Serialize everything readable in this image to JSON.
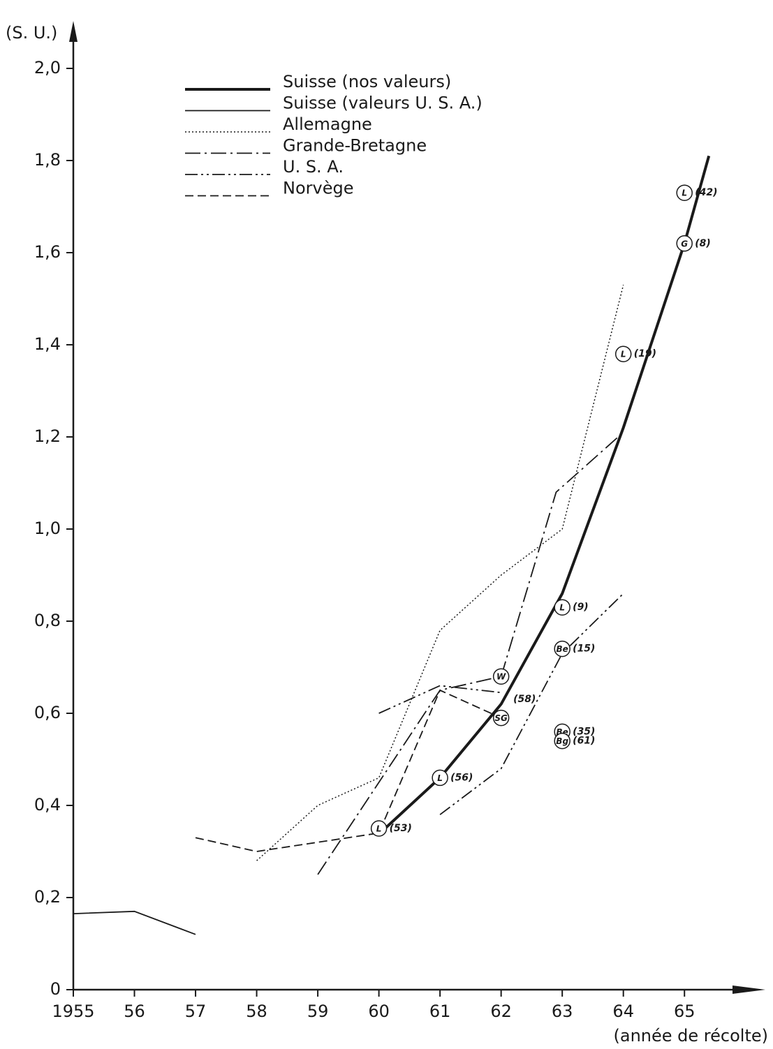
{
  "chart_data": {
    "type": "line",
    "y_label": "(S. U.)",
    "x_label": "(année de récolte)",
    "xlim": [
      1955,
      1966.3
    ],
    "ylim": [
      0,
      2.1
    ],
    "xticks": [
      1955,
      {
        "value": 1956,
        "label": "56"
      },
      {
        "value": 1957,
        "label": "57"
      },
      {
        "value": 1958,
        "label": "58"
      },
      {
        "value": 1959,
        "label": "59"
      },
      {
        "value": 1960,
        "label": "60"
      },
      {
        "value": 1961,
        "label": "61"
      },
      {
        "value": 1962,
        "label": "62"
      },
      {
        "value": 1963,
        "label": "63"
      },
      {
        "value": 1964,
        "label": "64"
      },
      {
        "value": 1965,
        "label": "65"
      }
    ],
    "yticks": [
      0,
      {
        "value": 0.2,
        "label": "0,2"
      },
      {
        "value": 0.4,
        "label": "0,4"
      },
      {
        "value": 0.6,
        "label": "0,6"
      },
      {
        "value": 0.8,
        "label": "0,8"
      },
      {
        "value": 1.0,
        "label": "1,0"
      },
      {
        "value": 1.2,
        "label": "1,2"
      },
      {
        "value": 1.4,
        "label": "1,4"
      },
      {
        "value": 1.6,
        "label": "1,6"
      },
      {
        "value": 1.8,
        "label": "1,8"
      },
      {
        "value": 2.0,
        "label": "2,0"
      }
    ],
    "legend": "upper left",
    "series": [
      {
        "name": "Suisse (nos valeurs)",
        "color": "#1a1a1a",
        "line_style": "thick",
        "x": [
          1960.1,
          1961,
          1962,
          1963,
          1964,
          1965,
          1965.4
        ],
        "values": [
          0.35,
          0.46,
          0.62,
          0.86,
          1.22,
          1.62,
          1.81
        ]
      },
      {
        "name": "Suisse (valeurs U. S. A.)",
        "color": "#1a1a1a",
        "line_style": "solid",
        "x": [
          1955,
          1956,
          1957
        ],
        "values": [
          0.165,
          0.17,
          0.12
        ]
      },
      {
        "name": "Allemagne",
        "color": "#1a1a1a",
        "line_style": "dotted",
        "x": [
          1958,
          1959,
          1960,
          1961,
          1962,
          1963,
          1964
        ],
        "values": [
          0.28,
          0.4,
          0.46,
          0.78,
          0.9,
          1.0,
          1.53
        ]
      },
      {
        "name": "Grande-Bretagne",
        "color": "#1a1a1a",
        "line_style": "dash-dot",
        "x": [
          1959,
          1961,
          1962,
          1962.9,
          1964
        ],
        "values": [
          0.25,
          0.65,
          0.68,
          1.08,
          1.21
        ]
      },
      {
        "name": "U. S. A.",
        "color": "#1a1a1a",
        "line_style": "dash-dot-dot",
        "x": [
          1960,
          1961,
          1962,
          null,
          1961,
          1962,
          1963,
          1964
        ],
        "values": [
          0.6,
          0.66,
          0.645,
          null,
          0.38,
          0.48,
          0.73,
          0.86
        ]
      },
      {
        "name": "Norvège",
        "color": "#1a1a1a",
        "line_style": "dashed",
        "x": [
          1957,
          1958,
          1960,
          1961,
          1962
        ],
        "values": [
          0.33,
          0.3,
          0.34,
          0.65,
          0.59
        ]
      }
    ],
    "annotations": [
      {
        "marker": "L",
        "label": "(53)",
        "x": 1960,
        "y": 0.35
      },
      {
        "marker": "L",
        "label": "(56)",
        "x": 1961,
        "y": 0.46
      },
      {
        "marker": "SG",
        "x": 1962,
        "y": 0.59
      },
      {
        "marker": "W",
        "x": 1962,
        "y": 0.68
      },
      {
        "label": "(58)",
        "x": 1962.2,
        "y": 0.63
      },
      {
        "marker": "L",
        "label": "(9)",
        "x": 1963,
        "y": 0.83
      },
      {
        "marker": "Be",
        "label": "(15)",
        "x": 1963,
        "y": 0.74
      },
      {
        "marker": "Be",
        "label": "(35)",
        "x": 1963,
        "y": 0.56
      },
      {
        "marker": "Bg",
        "label": "(61)",
        "x": 1963,
        "y": 0.54
      },
      {
        "marker": "L",
        "label": "(19)",
        "x": 1964,
        "y": 1.38
      },
      {
        "marker": "G",
        "label": "(8)",
        "x": 1965,
        "y": 1.62
      },
      {
        "marker": "L",
        "label": "(42)",
        "x": 1965,
        "y": 1.73
      }
    ]
  }
}
